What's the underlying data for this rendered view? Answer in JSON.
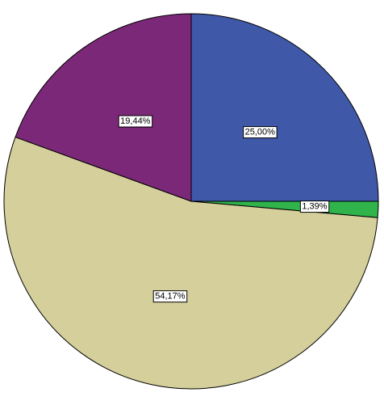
{
  "chart_data": {
    "type": "pie",
    "values": [
      25.0,
      1.39,
      54.17,
      19.44
    ],
    "value_labels": [
      "25,00%",
      "1,39%",
      "54,17%",
      "19,44%"
    ],
    "colors": [
      "#3f58a8",
      "#2fb34a",
      "#d5cf9b",
      "#7b2878"
    ]
  }
}
